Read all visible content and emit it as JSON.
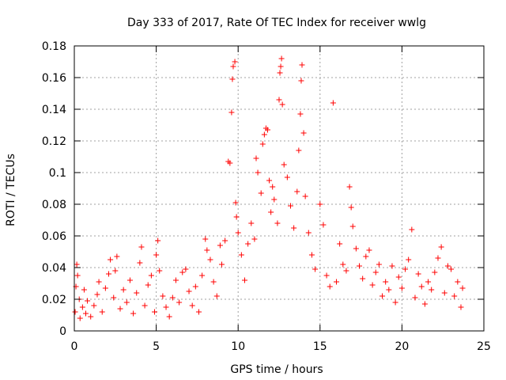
{
  "chart_data": {
    "type": "scatter",
    "title": "Day 333 of 2017, Rate Of TEC Index for receiver wwlg",
    "xlabel": "GPS time / hours",
    "ylabel": "ROTI / TECUs",
    "xlim": [
      0,
      25
    ],
    "ylim": [
      0,
      0.18
    ],
    "xticks": [
      0,
      5,
      10,
      15,
      20,
      25
    ],
    "yticks": [
      0,
      0.02,
      0.04,
      0.06,
      0.08,
      0.1,
      0.12,
      0.14,
      0.16,
      0.18
    ],
    "xtick_labels": [
      "0",
      "5",
      "10",
      "15",
      "20",
      "25"
    ],
    "ytick_labels": [
      "0",
      "0.02",
      "0.04",
      "0.06",
      "0.08",
      "0.1",
      "0.12",
      "0.14",
      "0.16",
      "0.18"
    ],
    "grid": true,
    "marker": "plus",
    "color": "#ff0000",
    "series": [
      {
        "points": [
          [
            0.05,
            0.012
          ],
          [
            0.1,
            0.028
          ],
          [
            0.15,
            0.042
          ],
          [
            0.2,
            0.035
          ],
          [
            0.3,
            0.02
          ],
          [
            0.35,
            0.008
          ],
          [
            0.5,
            0.015
          ],
          [
            0.6,
            0.026
          ],
          [
            0.7,
            0.011
          ],
          [
            0.8,
            0.019
          ],
          [
            1.0,
            0.009
          ],
          [
            1.2,
            0.016
          ],
          [
            1.4,
            0.023
          ],
          [
            1.5,
            0.031
          ],
          [
            1.7,
            0.012
          ],
          [
            1.9,
            0.027
          ],
          [
            2.1,
            0.036
          ],
          [
            2.2,
            0.045
          ],
          [
            2.4,
            0.021
          ],
          [
            2.5,
            0.038
          ],
          [
            2.6,
            0.047
          ],
          [
            2.8,
            0.014
          ],
          [
            3.0,
            0.026
          ],
          [
            3.2,
            0.018
          ],
          [
            3.4,
            0.032
          ],
          [
            3.6,
            0.011
          ],
          [
            3.8,
            0.024
          ],
          [
            4.0,
            0.043
          ],
          [
            4.1,
            0.053
          ],
          [
            4.3,
            0.016
          ],
          [
            4.5,
            0.029
          ],
          [
            4.7,
            0.035
          ],
          [
            4.9,
            0.012
          ],
          [
            5.0,
            0.048
          ],
          [
            5.1,
            0.057
          ],
          [
            5.2,
            0.038
          ],
          [
            5.4,
            0.022
          ],
          [
            5.6,
            0.015
          ],
          [
            5.8,
            0.009
          ],
          [
            6.0,
            0.021
          ],
          [
            6.2,
            0.032
          ],
          [
            6.4,
            0.018
          ],
          [
            6.6,
            0.037
          ],
          [
            6.8,
            0.039
          ],
          [
            7.0,
            0.025
          ],
          [
            7.2,
            0.016
          ],
          [
            7.4,
            0.028
          ],
          [
            7.6,
            0.012
          ],
          [
            7.8,
            0.035
          ],
          [
            8.0,
            0.058
          ],
          [
            8.1,
            0.051
          ],
          [
            8.3,
            0.045
          ],
          [
            8.5,
            0.031
          ],
          [
            8.7,
            0.022
          ],
          [
            8.9,
            0.054
          ],
          [
            9.0,
            0.042
          ],
          [
            9.2,
            0.057
          ],
          [
            9.4,
            0.107
          ],
          [
            9.5,
            0.106
          ],
          [
            9.6,
            0.138
          ],
          [
            9.65,
            0.159
          ],
          [
            9.7,
            0.167
          ],
          [
            9.8,
            0.17
          ],
          [
            9.85,
            0.081
          ],
          [
            9.9,
            0.072
          ],
          [
            10.0,
            0.062
          ],
          [
            10.2,
            0.048
          ],
          [
            10.4,
            0.032
          ],
          [
            10.6,
            0.055
          ],
          [
            10.8,
            0.068
          ],
          [
            11.0,
            0.058
          ],
          [
            11.1,
            0.109
          ],
          [
            11.2,
            0.1
          ],
          [
            11.4,
            0.087
          ],
          [
            11.5,
            0.118
          ],
          [
            11.6,
            0.124
          ],
          [
            11.7,
            0.128
          ],
          [
            11.8,
            0.127
          ],
          [
            11.9,
            0.095
          ],
          [
            12.0,
            0.075
          ],
          [
            12.1,
            0.091
          ],
          [
            12.2,
            0.083
          ],
          [
            12.4,
            0.068
          ],
          [
            12.5,
            0.146
          ],
          [
            12.55,
            0.163
          ],
          [
            12.6,
            0.167
          ],
          [
            12.65,
            0.172
          ],
          [
            12.7,
            0.143
          ],
          [
            12.8,
            0.105
          ],
          [
            13.0,
            0.097
          ],
          [
            13.2,
            0.079
          ],
          [
            13.4,
            0.065
          ],
          [
            13.6,
            0.088
          ],
          [
            13.7,
            0.114
          ],
          [
            13.8,
            0.137
          ],
          [
            13.85,
            0.158
          ],
          [
            13.9,
            0.168
          ],
          [
            14.0,
            0.125
          ],
          [
            14.1,
            0.085
          ],
          [
            14.3,
            0.062
          ],
          [
            14.5,
            0.048
          ],
          [
            14.7,
            0.039
          ],
          [
            15.0,
            0.08
          ],
          [
            15.2,
            0.067
          ],
          [
            15.4,
            0.035
          ],
          [
            15.6,
            0.028
          ],
          [
            15.8,
            0.144
          ],
          [
            16.0,
            0.031
          ],
          [
            16.2,
            0.055
          ],
          [
            16.4,
            0.042
          ],
          [
            16.6,
            0.038
          ],
          [
            16.8,
            0.091
          ],
          [
            16.9,
            0.078
          ],
          [
            17.0,
            0.066
          ],
          [
            17.2,
            0.052
          ],
          [
            17.4,
            0.041
          ],
          [
            17.6,
            0.033
          ],
          [
            17.8,
            0.047
          ],
          [
            18.0,
            0.051
          ],
          [
            18.2,
            0.029
          ],
          [
            18.4,
            0.037
          ],
          [
            18.6,
            0.042
          ],
          [
            18.8,
            0.022
          ],
          [
            19.0,
            0.031
          ],
          [
            19.2,
            0.026
          ],
          [
            19.4,
            0.041
          ],
          [
            19.6,
            0.018
          ],
          [
            19.8,
            0.034
          ],
          [
            20.0,
            0.027
          ],
          [
            20.2,
            0.039
          ],
          [
            20.4,
            0.045
          ],
          [
            20.6,
            0.064
          ],
          [
            20.8,
            0.021
          ],
          [
            21.0,
            0.036
          ],
          [
            21.2,
            0.028
          ],
          [
            21.4,
            0.017
          ],
          [
            21.6,
            0.031
          ],
          [
            21.8,
            0.026
          ],
          [
            22.0,
            0.037
          ],
          [
            22.2,
            0.046
          ],
          [
            22.4,
            0.053
          ],
          [
            22.6,
            0.024
          ],
          [
            22.8,
            0.041
          ],
          [
            23.0,
            0.039
          ],
          [
            23.2,
            0.022
          ],
          [
            23.4,
            0.031
          ],
          [
            23.6,
            0.015
          ],
          [
            23.7,
            0.027
          ]
        ]
      }
    ]
  }
}
